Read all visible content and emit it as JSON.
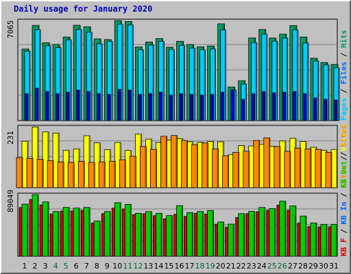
{
  "title": "Daily usage for January 2020",
  "colors": {
    "background": "#c0c0c0",
    "hits": "#009966",
    "files": "#00ccff",
    "pages": "#0000ff",
    "visits": "#ffff00",
    "sites": "#ff8800",
    "kb_out": "#cc0000",
    "kb_in": "#00cc00",
    "day_weekday": "#000000",
    "day_weekend": "#006633",
    "title": "#0000c0"
  },
  "chart_data": [
    {
      "type": "bar",
      "panel": "top",
      "ymax_label": "7065",
      "ymax": 7065,
      "right_labels": [
        {
          "text": "Pages",
          "color": "#00ccff"
        },
        {
          "text": " / ",
          "color": "#000000"
        },
        {
          "text": "Files",
          "color": "#0066ff"
        },
        {
          "text": " / ",
          "color": "#000000"
        },
        {
          "text": "Hits",
          "color": "#009966"
        }
      ],
      "categories": [
        "1",
        "2",
        "3",
        "4",
        "5",
        "6",
        "7",
        "8",
        "9",
        "10",
        "11",
        "12",
        "13",
        "14",
        "15",
        "16",
        "17",
        "18",
        "19",
        "20",
        "21",
        "22",
        "23",
        "24",
        "25",
        "26",
        "27",
        "28",
        "29",
        "30",
        "31"
      ],
      "series": [
        {
          "name": "Hits",
          "color": "#009966",
          "values": [
            5050,
            6720,
            5500,
            5380,
            5900,
            6730,
            6630,
            5770,
            5720,
            7060,
            7000,
            5200,
            5550,
            5790,
            5180,
            5600,
            5370,
            5210,
            5270,
            6830,
            2370,
            2810,
            5840,
            6430,
            5830,
            6100,
            6710,
            5900,
            4400,
            4100,
            3960
          ]
        },
        {
          "name": "Files",
          "color": "#00ccff",
          "values": [
            4900,
            6420,
            5280,
            5150,
            5700,
            6440,
            6240,
            5420,
            5580,
            6810,
            6750,
            5000,
            5330,
            5600,
            5020,
            5300,
            5120,
            5010,
            5050,
            6400,
            2170,
            2580,
            5510,
            6100,
            5610,
            5830,
            6410,
            5480,
            4200,
            3930,
            3730
          ]
        },
        {
          "name": "Pages",
          "color": "#0000ff",
          "values": [
            1900,
            2300,
            2050,
            1900,
            2000,
            2150,
            2050,
            1900,
            1850,
            2200,
            2150,
            1850,
            1900,
            2000,
            1800,
            1900,
            1850,
            1800,
            1850,
            2000,
            2160,
            1500,
            1900,
            2050,
            1950,
            2000,
            2050,
            1900,
            1600,
            1500,
            1450
          ]
        }
      ]
    },
    {
      "type": "bar",
      "panel": "middle",
      "ymax_label": "231",
      "ymax": 231,
      "right_labels": [
        {
          "text": "Sites",
          "color": "#ff8800"
        },
        {
          "text": " / ",
          "color": "#000000"
        },
        {
          "text": "Visits",
          "color": "#ffff00"
        }
      ],
      "categories": [
        "1",
        "2",
        "3",
        "4",
        "5",
        "6",
        "7",
        "8",
        "9",
        "10",
        "11",
        "12",
        "13",
        "14",
        "15",
        "16",
        "17",
        "18",
        "19",
        "20",
        "21",
        "22",
        "23",
        "24",
        "25",
        "26",
        "27",
        "28",
        "29",
        "30",
        "31"
      ],
      "series": [
        {
          "name": "Visits",
          "color": "#ffff00",
          "values": [
            176,
            230,
            211,
            207,
            142,
            147,
            197,
            170,
            144,
            171,
            141,
            203,
            184,
            171,
            180,
            186,
            174,
            172,
            175,
            174,
            125,
            160,
            158,
            164,
            157,
            177,
            187,
            175,
            153,
            142,
            145
          ]
        },
        {
          "name": "Sites",
          "color": "#ff8800",
          "values": [
            114,
            111,
            108,
            102,
            98,
            96,
            100,
            96,
            98,
            100,
            106,
            119,
            156,
            145,
            195,
            198,
            179,
            163,
            169,
            147,
            121,
            134,
            138,
            179,
            189,
            156,
            138,
            150,
            147,
            145,
            134
          ]
        }
      ]
    },
    {
      "type": "bar",
      "panel": "bottom",
      "ymax_label": "89049",
      "ymax": 89049,
      "right_labels": [
        {
          "text": "KB F",
          "color": "#cc0000"
        },
        {
          "text": " / ",
          "color": "#000000"
        },
        {
          "text": "KB In",
          "color": "#0066ff"
        },
        {
          "text": " / ",
          "color": "#000000"
        },
        {
          "text": "KB Out",
          "color": "#00cc00"
        },
        {
          "text": " / ",
          "color": "#000000"
        },
        {
          "text": "Sites",
          "color": "#ff8800"
        }
      ],
      "categories": [
        "1",
        "2",
        "3",
        "4",
        "5",
        "6",
        "7",
        "8",
        "9",
        "10",
        "11",
        "12",
        "13",
        "14",
        "15",
        "16",
        "17",
        "18",
        "19",
        "20",
        "21",
        "22",
        "23",
        "24",
        "25",
        "26",
        "27",
        "28",
        "29",
        "30",
        "31"
      ],
      "series": [
        {
          "name": "KB F",
          "color": "#cc0000",
          "values": [
            70300,
            81900,
            74100,
            61000,
            65300,
            65300,
            66300,
            48100,
            61500,
            69500,
            68300,
            60000,
            61500,
            58500,
            54100,
            60500,
            57500,
            61900,
            60900,
            46300,
            41900,
            55900,
            61500,
            64300,
            66300,
            73700,
            66300,
            47800,
            42700,
            42500,
            42500
          ]
        },
        {
          "name": "KB Out",
          "color": "#00cc00",
          "values": [
            75200,
            89000,
            78500,
            64500,
            70500,
            69500,
            70500,
            50700,
            64500,
            77300,
            74900,
            62000,
            64500,
            62000,
            58700,
            73100,
            63000,
            64500,
            66000,
            49500,
            46400,
            61500,
            64800,
            70500,
            68700,
            79400,
            72600,
            58000,
            48100,
            46100,
            46000
          ]
        }
      ]
    }
  ]
}
